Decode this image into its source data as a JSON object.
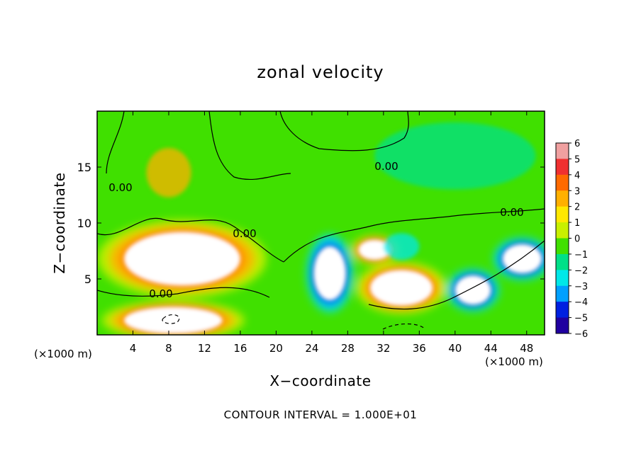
{
  "chart_data": {
    "type": "heatmap",
    "title": "zonal velocity",
    "xlabel": "X−coordinate",
    "ylabel": "Z−coordinate",
    "x_unit_left": "(×1000 m)",
    "x_unit_right": "(×1000 m)",
    "xlim": [
      0,
      50
    ],
    "ylim": [
      0,
      20
    ],
    "x_ticks": [
      "4",
      "8",
      "12",
      "16",
      "20",
      "24",
      "28",
      "32",
      "36",
      "40",
      "44",
      "48"
    ],
    "x_tick_values": [
      4,
      8,
      12,
      16,
      20,
      24,
      28,
      32,
      36,
      40,
      44,
      48
    ],
    "y_ticks": [
      "5",
      "10",
      "15"
    ],
    "y_tick_values": [
      5,
      10,
      15
    ],
    "colorbar": {
      "ticks": [
        "6",
        "5",
        "4",
        "3",
        "2",
        "1",
        "0",
        "−1",
        "−2",
        "−3",
        "−4",
        "−5",
        "−6"
      ],
      "tick_values": [
        6,
        5,
        4,
        3,
        2,
        1,
        0,
        -1,
        -2,
        -3,
        -4,
        -5,
        -6
      ],
      "colors": [
        "#f0a0a0",
        "#f03030",
        "#ff6a00",
        "#ffb000",
        "#ffe800",
        "#c8f000",
        "#40e000",
        "#00e088",
        "#00e8e8",
        "#00a0ff",
        "#0020e0",
        "#2000a0"
      ]
    },
    "contour_labels": [
      "0.00",
      "0.00",
      "0.00",
      "0.00",
      "0.00"
    ],
    "footer": "CONTOUR INTERVAL = 1.000E+01",
    "regions": [
      {
        "x": 9.5,
        "y": 6.8,
        "rx": 6.5,
        "ry": 2.4,
        "value": 8,
        "label": "high-positive-left"
      },
      {
        "x": 8.5,
        "y": 1.3,
        "rx": 5.5,
        "ry": 1.2,
        "value": 8,
        "label": "high-positive-bottom-left"
      },
      {
        "x": 34,
        "y": 4.2,
        "rx": 3.5,
        "ry": 1.6,
        "value": 8,
        "label": "high-positive-center"
      },
      {
        "x": 31,
        "y": 7.6,
        "rx": 1.8,
        "ry": 0.9,
        "value": 8,
        "label": "high-positive-top-center"
      },
      {
        "x": 26,
        "y": 5.5,
        "rx": 1.8,
        "ry": 2.4,
        "value": -8,
        "label": "negative-core"
      },
      {
        "x": 42,
        "y": 4.0,
        "rx": 2.0,
        "ry": 1.3,
        "value": -7,
        "label": "negative-right"
      },
      {
        "x": 47.5,
        "y": 6.8,
        "rx": 2.2,
        "ry": 1.3,
        "value": -7,
        "label": "negative-far-right"
      },
      {
        "x": 34,
        "y": 7.9,
        "rx": 2.0,
        "ry": 1.2,
        "value": -2.5,
        "label": "cyan-pocket"
      },
      {
        "x": 8,
        "y": 14.5,
        "rx": 2.5,
        "ry": 2.2,
        "value": 3,
        "label": "warm-plume"
      },
      {
        "x": 40,
        "y": 16,
        "rx": 9,
        "ry": 3,
        "value": -1.5,
        "label": "upper-right-cyan"
      }
    ]
  }
}
